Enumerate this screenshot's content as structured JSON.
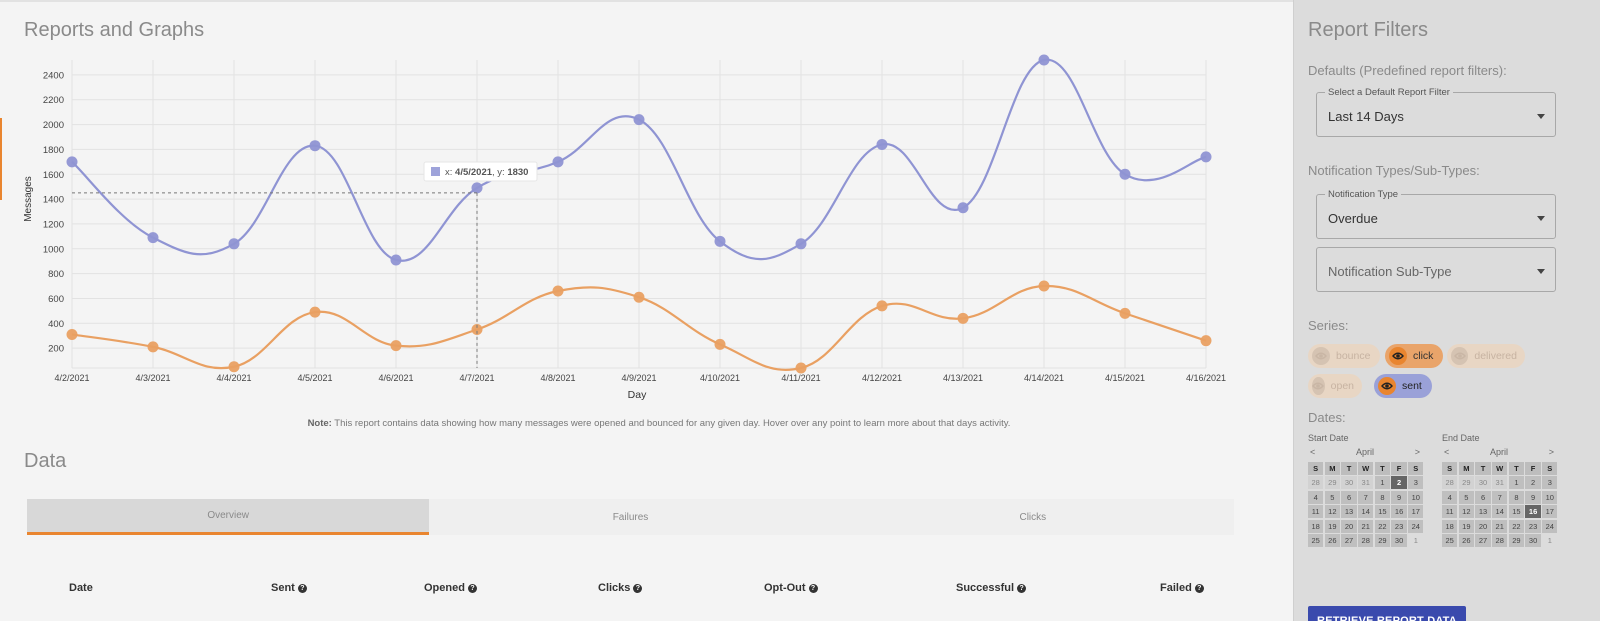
{
  "main": {
    "title": "Reports and Graphs",
    "data_title": "Data",
    "note_bold": "Note:",
    "note_text": " This report contains data showing how many messages were opened and bounced for any given day. Hover over any point to learn more about that days activity.",
    "tabs": [
      {
        "label": "Overview",
        "active": true
      },
      {
        "label": "Failures",
        "active": false
      },
      {
        "label": "Clicks",
        "active": false
      }
    ],
    "table_headers": [
      {
        "label": "Date",
        "help": false
      },
      {
        "label": "Sent",
        "help": true
      },
      {
        "label": "Opened",
        "help": true
      },
      {
        "label": "Clicks",
        "help": true
      },
      {
        "label": "Opt-Out",
        "help": true
      },
      {
        "label": "Successful",
        "help": true
      },
      {
        "label": "Failed",
        "help": true
      }
    ]
  },
  "chart_data": {
    "type": "line",
    "xlabel": "Day",
    "ylabel": "Messages",
    "categories": [
      "4/2/2021",
      "4/3/2021",
      "4/4/2021",
      "4/5/2021",
      "4/6/2021",
      "4/7/2021",
      "4/8/2021",
      "4/9/2021",
      "4/10/2021",
      "4/11/2021",
      "4/12/2021",
      "4/13/2021",
      "4/14/2021",
      "4/15/2021",
      "4/16/2021"
    ],
    "yticks": [
      200,
      400,
      600,
      800,
      1000,
      1200,
      1400,
      1600,
      1800,
      2000,
      2200,
      2400
    ],
    "ylim": [
      40,
      2520
    ],
    "series": [
      {
        "name": "sent",
        "color": "#8f94d3",
        "values": [
          1700,
          1090,
          1040,
          1830,
          910,
          1490,
          1700,
          2040,
          1060,
          1040,
          1840,
          1330,
          2520,
          1600,
          1740
        ]
      },
      {
        "name": "click",
        "color": "#e9a062",
        "values": [
          310,
          210,
          50,
          490,
          220,
          350,
          660,
          610,
          230,
          40,
          540,
          440,
          700,
          480,
          260
        ]
      }
    ],
    "tooltip": {
      "label_x": "x: ",
      "x": "4/5/2021",
      "label_y": ", y: ",
      "y": "1830"
    },
    "crosshair": {
      "x_index": 5,
      "y": 1450
    },
    "grid": true
  },
  "side": {
    "title": "Report Filters",
    "defaults_label": "Defaults (Predefined report filters):",
    "default_filter": {
      "legend": "Select a Default Report Filter",
      "value": "Last 14 Days"
    },
    "types_label": "Notification Types/Sub-Types:",
    "notification_type": {
      "legend": "Notification Type",
      "value": "Overdue"
    },
    "notification_subtype": {
      "placeholder": "Notification Sub-Type"
    },
    "series_label": "Series:",
    "series": [
      {
        "label": "bounce",
        "state": "off"
      },
      {
        "label": "click",
        "state": "on-click"
      },
      {
        "label": "delivered",
        "state": "off"
      },
      {
        "label": "open",
        "state": "off"
      },
      {
        "label": "sent",
        "state": "on-sent"
      }
    ],
    "dates_label": "Dates:",
    "start": {
      "label": "Start Date",
      "month": "April",
      "prev": "<",
      "next": ">",
      "selected": "2"
    },
    "end": {
      "label": "End Date",
      "month": "April",
      "prev": "<",
      "next": ">",
      "selected": "16"
    },
    "weekdays": [
      "S",
      "M",
      "T",
      "W",
      "T",
      "F",
      "S"
    ],
    "days": [
      "28",
      "29",
      "30",
      "31",
      "1",
      "2",
      "3",
      "4",
      "5",
      "6",
      "7",
      "8",
      "9",
      "10",
      "11",
      "12",
      "13",
      "14",
      "15",
      "16",
      "17",
      "18",
      "19",
      "20",
      "21",
      "22",
      "23",
      "24",
      "25",
      "26",
      "27",
      "28",
      "29",
      "30",
      "1"
    ],
    "button_label": "RETRIEVE REPORT DATA"
  }
}
